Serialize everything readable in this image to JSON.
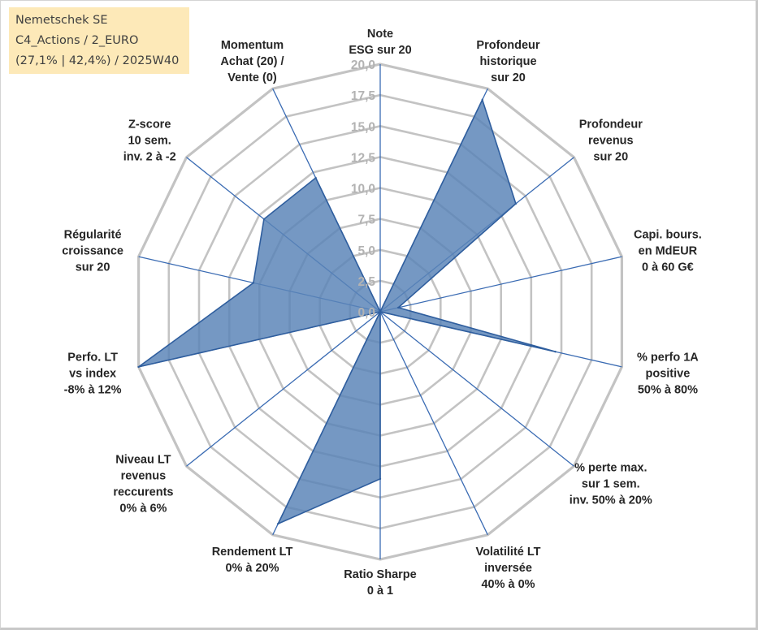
{
  "info_box": {
    "line1": "Nemetschek SE",
    "line2": "C4_Actions / 2_EURO",
    "line3": "(27,1% | 42,4%) / 2025W40"
  },
  "colors": {
    "fill": "#5b84b8",
    "stroke": "#2f5e9e",
    "grid": "#c3c3c3",
    "spoke": "#3a6bb3",
    "info_bg": "#fde9b8"
  },
  "chart_data": {
    "type": "radar",
    "title": "",
    "rmin": 0,
    "rmax": 20,
    "ticks": [
      "0,0",
      "2,5",
      "5,0",
      "7,5",
      "10,0",
      "12,5",
      "15,0",
      "17,5",
      "20,0"
    ],
    "axes": [
      {
        "label": [
          "Note",
          "ESG sur 20"
        ],
        "value": 0
      },
      {
        "label": [
          "Profondeur",
          "historique",
          "sur 20"
        ],
        "value": 19
      },
      {
        "label": [
          "Profondeur",
          "revenus",
          "sur 20"
        ],
        "value": 14
      },
      {
        "label": [
          "Capi. bours.",
          "en MdEUR",
          "0 à 60 G€"
        ],
        "value": 1.5
      },
      {
        "label": [
          "% perfo 1A",
          "positive",
          "50% à 80%"
        ],
        "value": 14.5
      },
      {
        "label": [
          "% perte max.",
          "sur 1 sem.",
          "inv. 50% à 20%"
        ],
        "value": 0
      },
      {
        "label": [
          "Volatilité LT",
          "inversée",
          "40% à 0%"
        ],
        "value": 0
      },
      {
        "label": [
          "Ratio Sharpe",
          "0 à 1"
        ],
        "value": 13.5
      },
      {
        "label": [
          "Rendement LT",
          "0% à 20%"
        ],
        "value": 19
      },
      {
        "label": [
          "Niveau LT",
          "revenus",
          "reccurents",
          "0% à 6%"
        ],
        "value": 0
      },
      {
        "label": [
          "Perfo. LT",
          "vs index",
          "-8% à 12%"
        ],
        "value": 20
      },
      {
        "label": [
          "Régularité",
          "croissance",
          "sur 20"
        ],
        "value": 10.5
      },
      {
        "label": [
          "Z-score",
          "10 sem.",
          "inv. 2 à -2"
        ],
        "value": 12
      },
      {
        "label": [
          "Momentum",
          "Achat (20) /",
          "Vente (0)"
        ],
        "value": 12
      }
    ]
  }
}
